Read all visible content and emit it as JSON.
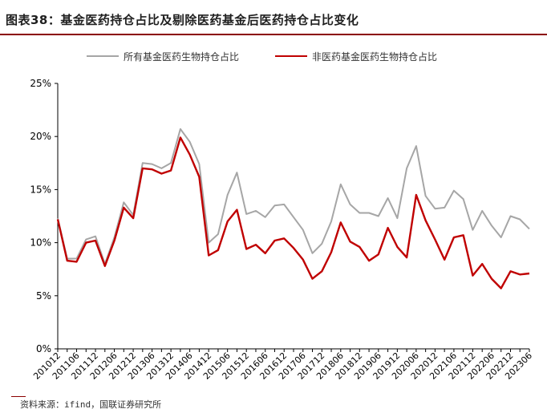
{
  "page": {
    "title": "图表38：基金医药持仓占比及剔除医药基金后医药持仓占比变化",
    "source": "资料来源：ifind，国联证券研究所"
  },
  "chart_data": {
    "type": "line",
    "title": "",
    "xlabel": "",
    "ylabel": "",
    "ylim": [
      0,
      25
    ],
    "yticks": [
      "0%",
      "5%",
      "10%",
      "15%",
      "20%",
      "25%"
    ],
    "ytick_values": [
      0,
      5,
      10,
      15,
      20,
      25
    ],
    "grid": false,
    "legend_position": "top",
    "x": [
      "201012",
      "201103",
      "201106",
      "201109",
      "201112",
      "201203",
      "201206",
      "201209",
      "201212",
      "201303",
      "201306",
      "201309",
      "201312",
      "201403",
      "201406",
      "201409",
      "201412",
      "201503",
      "201506",
      "201509",
      "201512",
      "201603",
      "201606",
      "201609",
      "201612",
      "201703",
      "201706",
      "201709",
      "201712",
      "201803",
      "201806",
      "201809",
      "201812",
      "201903",
      "201906",
      "201909",
      "201912",
      "202003",
      "202006",
      "202009",
      "202012",
      "202103",
      "202106",
      "202109",
      "202112",
      "202203",
      "202206",
      "202209",
      "202212",
      "202303",
      "202306"
    ],
    "xtick_labels": [
      "201012",
      "201106",
      "201112",
      "201206",
      "201212",
      "201306",
      "201312",
      "201406",
      "201412",
      "201506",
      "201512",
      "201606",
      "201612",
      "201706",
      "201712",
      "201806",
      "201812",
      "201906",
      "201912",
      "202006",
      "202012",
      "202106",
      "202112",
      "202206",
      "202212",
      "202306"
    ],
    "series": [
      {
        "name": "所有基金医药生物持仓占比",
        "color": "#a6a6a6",
        "values": [
          12.3,
          8.5,
          8.5,
          10.3,
          10.6,
          8.0,
          10.5,
          13.8,
          12.6,
          17.5,
          17.4,
          17.0,
          17.5,
          20.7,
          19.5,
          17.4,
          10.0,
          10.8,
          14.5,
          16.6,
          12.7,
          13.0,
          12.4,
          13.5,
          13.6,
          12.4,
          11.2,
          9.0,
          9.9,
          12.0,
          15.5,
          13.6,
          12.8,
          12.8,
          12.5,
          14.2,
          12.3,
          17.0,
          19.1,
          14.4,
          13.2,
          13.3,
          14.9,
          14.1,
          11.2,
          13.0,
          11.6,
          10.5,
          12.5,
          12.2,
          11.3
        ]
      },
      {
        "name": "非医药基金医药生物持仓占比",
        "color": "#c00000",
        "values": [
          12.2,
          8.3,
          8.2,
          10.0,
          10.2,
          7.8,
          10.2,
          13.3,
          12.3,
          17.0,
          16.9,
          16.5,
          16.8,
          19.9,
          18.3,
          16.2,
          8.8,
          9.3,
          12.0,
          13.1,
          9.4,
          9.8,
          9.0,
          10.2,
          10.4,
          9.5,
          8.4,
          6.6,
          7.3,
          9.1,
          11.9,
          10.1,
          9.6,
          8.3,
          8.9,
          11.4,
          9.6,
          8.6,
          14.5,
          12.1,
          10.3,
          8.4,
          10.5,
          10.7,
          6.9,
          8.0,
          6.6,
          5.7,
          7.3,
          7.0,
          7.1
        ]
      }
    ]
  }
}
